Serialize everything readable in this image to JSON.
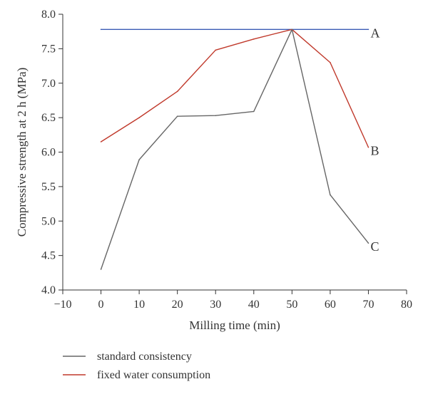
{
  "chart_data": {
    "type": "line",
    "xlabel": "Milling time (min)",
    "ylabel": "Compressive strength at 2 h (MPa)",
    "xlim": [
      -10,
      80
    ],
    "ylim": [
      4.0,
      8.0
    ],
    "x_ticks": [
      -10,
      0,
      10,
      20,
      30,
      40,
      50,
      60,
      70,
      80
    ],
    "y_ticks": [
      4.0,
      4.5,
      5.0,
      5.5,
      6.0,
      6.5,
      7.0,
      7.5,
      8.0
    ],
    "x_tick_labels": [
      "−10",
      "0",
      "10",
      "20",
      "30",
      "40",
      "50",
      "60",
      "70",
      "80"
    ],
    "y_tick_labels": [
      "4.0",
      "4.5",
      "5.0",
      "5.5",
      "6.0",
      "6.5",
      "7.0",
      "7.5",
      "8.0"
    ],
    "grid": false,
    "legend_position": "bottom-left",
    "series": [
      {
        "name": "",
        "label": "A",
        "color": "#3b5bb5",
        "x": [
          0,
          70
        ],
        "y": [
          7.78,
          7.78
        ]
      },
      {
        "name": "fixed water consumption",
        "label": "B",
        "color": "#c0392b",
        "x": [
          0,
          10,
          20,
          30,
          40,
          50,
          60,
          70
        ],
        "y": [
          6.15,
          6.5,
          6.88,
          7.48,
          7.64,
          7.78,
          7.3,
          6.07
        ]
      },
      {
        "name": "standard consistency",
        "label": "C",
        "color": "#666666",
        "x": [
          0,
          10,
          20,
          30,
          40,
          50,
          60,
          70
        ],
        "y": [
          4.3,
          5.89,
          6.52,
          6.53,
          6.59,
          7.78,
          5.38,
          4.68
        ]
      }
    ],
    "legend": [
      {
        "label": "standard consistency",
        "color": "#666666"
      },
      {
        "label": "fixed water consumption",
        "color": "#c0392b"
      }
    ]
  }
}
